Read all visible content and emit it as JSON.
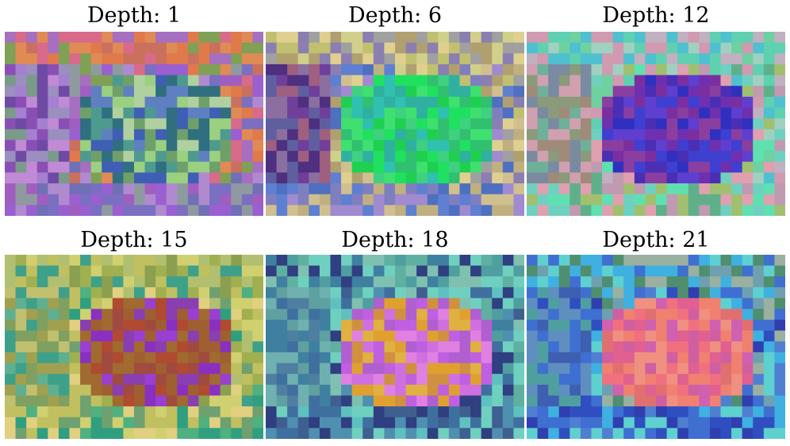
{
  "figure": {
    "panels": [
      {
        "title": "Depth: 1",
        "palette": [
          "#e07a4a",
          "#d86a8a",
          "#8a4fb5",
          "#6f4aa5",
          "#6fa06a",
          "#9ad07f",
          "#4f9a8f",
          "#3f5fb5",
          "#c06fd0",
          "#7aa85f",
          "#b0d0a0",
          "#5f80c0"
        ],
        "regions": [
          {
            "name": "top-band",
            "colors": [
              "#e07a4a",
              "#d86a8a",
              "#e08a55",
              "#c9705f",
              "#a66fbf",
              "#7fa055"
            ]
          },
          {
            "name": "left-side",
            "colors": [
              "#8a4fb5",
              "#a57fd0",
              "#6f4aa5",
              "#9a8fbf",
              "#7a9a8a",
              "#c08ad5"
            ]
          },
          {
            "name": "subject",
            "colors": [
              "#4f9a8f",
              "#3f5fb5",
              "#6fa06a",
              "#9ad07f",
              "#b0d0a0",
              "#5f80c0",
              "#2f6f7f"
            ]
          },
          {
            "name": "bottom",
            "colors": [
              "#9a5fd0",
              "#7a6fc0",
              "#a05fc0",
              "#8f9aa0",
              "#b08acf",
              "#6f70b5"
            ]
          }
        ]
      },
      {
        "title": "Depth: 6",
        "palette": [
          "#c0c070",
          "#d0d08a",
          "#6f3f9a",
          "#4f2f7f",
          "#20e060",
          "#3fd080",
          "#2fb0a0",
          "#5f7fd0",
          "#a08ad0",
          "#c0b080"
        ],
        "regions": [
          {
            "name": "top-band",
            "colors": [
              "#c0c070",
              "#d0d08a",
              "#b0a070",
              "#8a7fb0",
              "#e0d090",
              "#a0a0a0"
            ]
          },
          {
            "name": "left-side",
            "colors": [
              "#6f3f9a",
              "#4f2f7f",
              "#8a6fa0",
              "#9f5f7f",
              "#5f5f9f"
            ]
          },
          {
            "name": "subject",
            "colors": [
              "#20e060",
              "#3fd080",
              "#2fb0a0",
              "#30c070",
              "#3fe070",
              "#2fc0b0",
              "#1fd050"
            ]
          },
          {
            "name": "bottom",
            "colors": [
              "#5f7fd0",
              "#a08ad0",
              "#c0b080",
              "#4f6fc0",
              "#7f7fc0",
              "#d0c090"
            ]
          }
        ]
      },
      {
        "title": "Depth: 12",
        "palette": [
          "#6fd0a0",
          "#4fc0d0",
          "#d09ab0",
          "#7a2fa0",
          "#5f3fd0",
          "#3030c0",
          "#60e0b0",
          "#a0c070",
          "#e0a0b0",
          "#5fb08a"
        ],
        "regions": [
          {
            "name": "top-band",
            "colors": [
              "#6fd0a0",
              "#4fc0d0",
              "#d09ab0",
              "#a0d0c0",
              "#5fd0b0",
              "#c0b0c0"
            ]
          },
          {
            "name": "left-side",
            "colors": [
              "#8a9a7a",
              "#6fb09a",
              "#d0a0b0",
              "#7a8aa0",
              "#a08a7a"
            ]
          },
          {
            "name": "subject",
            "colors": [
              "#7a2fa0",
              "#5f3fd0",
              "#3030c0",
              "#6f30b0",
              "#4a2fb5",
              "#8a3fa0",
              "#3f3fd0"
            ]
          },
          {
            "name": "bottom",
            "colors": [
              "#60e0b0",
              "#a0c070",
              "#e0a0b0",
              "#5fb08a",
              "#70d0c0",
              "#c09ab0"
            ]
          }
        ]
      },
      {
        "title": "Depth: 15",
        "palette": [
          "#a0b050",
          "#c0c060",
          "#3fa08a",
          "#2f9f7f",
          "#b04a30",
          "#9a3fd0",
          "#8a30c0",
          "#d0d070",
          "#5fb090"
        ],
        "regions": [
          {
            "name": "top-band",
            "colors": [
              "#a0b050",
              "#c0c060",
              "#3fa08a",
              "#d0d070",
              "#8aa050",
              "#b0c070"
            ]
          },
          {
            "name": "left-side",
            "colors": [
              "#5fb090",
              "#3fa08a",
              "#a0a050",
              "#c0c070",
              "#7fa060"
            ]
          },
          {
            "name": "subject",
            "colors": [
              "#b04a30",
              "#9a3fd0",
              "#8a30c0",
              "#a04a40",
              "#9f5f30",
              "#8a3fb0",
              "#a06a30"
            ]
          },
          {
            "name": "bottom",
            "colors": [
              "#d0d070",
              "#2f9f7f",
              "#c0c060",
              "#4fb080",
              "#e0d080",
              "#6fa070"
            ]
          }
        ]
      },
      {
        "title": "Depth: 18",
        "palette": [
          "#5fb0a0",
          "#3f80a0",
          "#2f3f80",
          "#c05fe0",
          "#e080e0",
          "#e0a030",
          "#d09040",
          "#6fd0c0",
          "#3f6f9f"
        ],
        "regions": [
          {
            "name": "top-band",
            "colors": [
              "#5fb0a0",
              "#3f80a0",
              "#6fd0c0",
              "#4f9fa0",
              "#2f3f80",
              "#7fc0b0"
            ]
          },
          {
            "name": "left-side",
            "colors": [
              "#3f80a0",
              "#5fa0a0",
              "#3f6f9f",
              "#6fb0b0",
              "#4f7fa0"
            ]
          },
          {
            "name": "subject",
            "colors": [
              "#c05fe0",
              "#e080e0",
              "#e0a030",
              "#d09040",
              "#d070e0",
              "#e0b040",
              "#b05fd0"
            ]
          },
          {
            "name": "bottom",
            "colors": [
              "#2f3f80",
              "#3f6f9f",
              "#6fd0c0",
              "#4f8fb0",
              "#3f5f90",
              "#5fc0c0"
            ]
          }
        ]
      },
      {
        "title": "Depth: 21",
        "palette": [
          "#3f6fd0",
          "#2f4fc0",
          "#5fd0d0",
          "#e06090",
          "#f08070",
          "#d05fa0",
          "#4f8f6f",
          "#9ab0a0",
          "#3fb0e0"
        ],
        "regions": [
          {
            "name": "top-band",
            "colors": [
              "#9ab0a0",
              "#5fd0d0",
              "#4f8f6f",
              "#3f6fd0",
              "#6fa0b0",
              "#3fb0e0"
            ]
          },
          {
            "name": "left-side",
            "colors": [
              "#2f4fc0",
              "#3f6fd0",
              "#4f9fa0",
              "#3f5fb0",
              "#5f8fc0"
            ]
          },
          {
            "name": "subject",
            "colors": [
              "#e06090",
              "#f08070",
              "#d05fa0",
              "#f07080",
              "#e07070",
              "#d060b0",
              "#f09080"
            ]
          },
          {
            "name": "bottom",
            "colors": [
              "#2f4fc0",
              "#3f6fd0",
              "#5fd0d0",
              "#2f3fb0",
              "#4f7fd0",
              "#3fb0e0"
            ]
          }
        ]
      }
    ]
  }
}
